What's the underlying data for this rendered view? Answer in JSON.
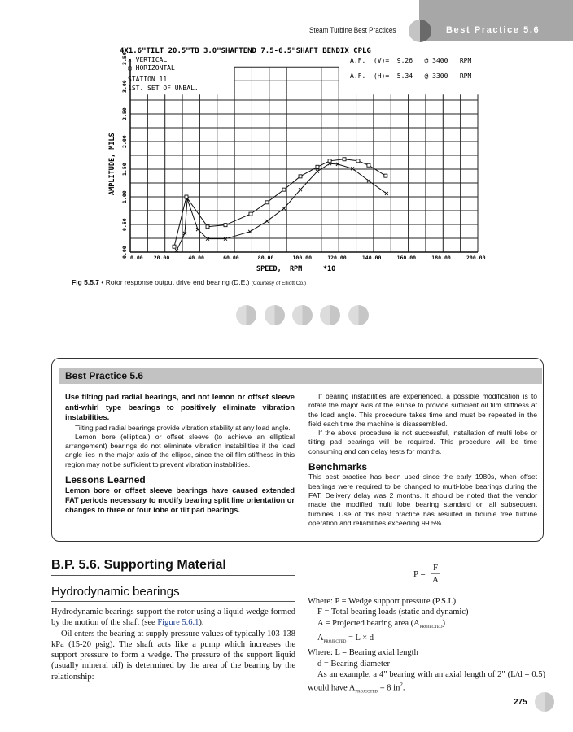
{
  "header": {
    "book_title": "Steam Turbine Best Practices",
    "section_tab": "Best Practice 5.6"
  },
  "figure": {
    "title_line": "4X1.6\"TILT 20.5\"TB 3.0\"SHAFTEND 7.5-6.5\"SHAFT BENDIX CPLG",
    "legend": [
      {
        "marker": "x",
        "label": "VERTICAL"
      },
      {
        "marker": "square",
        "label": "HORIZONTAL"
      }
    ],
    "station": "STATION 11",
    "unbal": "1ST. SET OF UNBAL.",
    "af_v": "A.F.  (V)=  9.26   @ 3400   RPM",
    "af_h": "A.F.  (H)=  5.34   @ 3300   RPM",
    "caption_label": "Fig 5.5.7",
    "caption_bullet": "•",
    "caption_text": "Rotor response output drive end bearing (D.E.)",
    "caption_credit": "(Courtesy of Elliott Co.)"
  },
  "chart_data": {
    "type": "line",
    "xlabel": "SPEED,  RPM     *10",
    "ylabel": "AMPLITUDE, MILS",
    "xlim": [
      0,
      200
    ],
    "ylim": [
      0,
      3.5
    ],
    "x_ticks": [
      "0.00",
      "20.00",
      "40.00",
      "60.00",
      "80.00",
      "100.00",
      "120.00",
      "140.00",
      "160.00",
      "180.00",
      "200.00"
    ],
    "y_ticks": [
      "0.00",
      "0.50",
      "1.00",
      "1.50",
      "2.00",
      "2.50",
      "3.00",
      "3.50"
    ],
    "grid": true,
    "series": [
      {
        "name": "VERTICAL",
        "marker": "x",
        "points": [
          [
            26.7,
            0.03
          ],
          [
            31.4,
            0.34
          ],
          [
            32.8,
            0.96
          ],
          [
            38.9,
            0.41
          ],
          [
            44.5,
            0.24
          ],
          [
            54.8,
            0.24
          ],
          [
            68.9,
            0.37
          ],
          [
            78.7,
            0.56
          ],
          [
            88.5,
            0.79
          ],
          [
            97.9,
            1.13
          ],
          [
            107.7,
            1.46
          ],
          [
            114.8,
            1.6
          ],
          [
            119.4,
            1.59
          ],
          [
            127.9,
            1.51
          ],
          [
            137.2,
            1.29
          ],
          [
            147.5,
            1.06
          ]
        ]
      },
      {
        "name": "HORIZONTAL",
        "marker": "square",
        "points": [
          [
            25.3,
            0.1
          ],
          [
            32.3,
            1.0
          ],
          [
            44.5,
            0.46
          ],
          [
            54.8,
            0.49
          ],
          [
            69.3,
            0.69
          ],
          [
            78.7,
            0.9
          ],
          [
            88.5,
            1.13
          ],
          [
            97.9,
            1.37
          ],
          [
            107.7,
            1.54
          ],
          [
            114.8,
            1.65
          ],
          [
            123.2,
            1.68
          ],
          [
            131.1,
            1.65
          ],
          [
            137.2,
            1.57
          ],
          [
            147,
            1.38
          ]
        ]
      }
    ]
  },
  "box": {
    "title": "Best Practice 5.6",
    "lead": "Use tilting pad radial bearings, and not lemon or offset sleeve anti-whirl type bearings to positively eliminate vibration instabilities.",
    "p1": "Tilting pad radial bearings provide vibration stability at any load angle.",
    "p2": "Lemon bore (elliptical) or offset sleeve (to achieve an elliptical arrangement) bearings do not eliminate vibration instabilities if the load angle lies in the major axis of the ellipse, since the oil film stiffness in this region may not be sufficient to prevent vibration instabilities.",
    "lessons_title": "Lessons Learned",
    "lessons": "Lemon bore or offset sleeve bearings have caused extended FAT periods necessary to modify bearing split line orientation or changes to three or four lobe or tilt pad bearings.",
    "p3": "If bearing instabilities are experienced, a possible modification is to rotate the major axis of the ellipse to provide sufficient oil film stiffness at the load angle. This procedure takes time and must be repeated in the field each time the machine is disassembled.",
    "p4": "If the above procedure is not successful, installation of multi lobe or tilting pad bearings will be required. This procedure will be time consuming and can delay tests for months.",
    "bench_title": "Benchmarks",
    "bench": "This best practice has been used since the early 1980s, when offset bearings were required to be changed to multi-lobe bearings during the FAT. Delivery delay was 2 months. It should be noted that the vendor made the modified multi lobe bearing standard on all subsequent turbines. Use of this best practice has resulted in trouble free turbine operation and reliabilities exceeding 99.5%."
  },
  "support": {
    "heading": "B.P. 5.6. Supporting Material",
    "subheading": "Hydrodynamic bearings",
    "p1a": "Hydrodynamic bearings support the rotor using a liquid wedge formed by the motion of the shaft (see ",
    "p1link": "Figure 5.6.1",
    "p1b": ").",
    "p2": "Oil enters the bearing at supply pressure values of typically 103-138 kPa (15-20 psig). The shaft acts like a pump which increases the support pressure to form a wedge. The pressure of the support liquid (usually mineral oil) is determined by the area of the bearing by the relationship:",
    "formula_lhs": "P =",
    "formula_num": "F",
    "formula_den": "A",
    "w1": "Where: P = Wedge support pressure (P.S.I.)",
    "w2": "F = Total bearing loads (static and dynamic)",
    "w3": "A = Projected bearing area (A",
    "w3sub": "PROJECTED",
    "w3end": ")",
    "w4": "A",
    "w4sub": "PROJECTED",
    "w4end": " = L × d",
    "w5": "Where: L = Bearing axial length",
    "w6": "d = Bearing diameter",
    "w7a": "As an example, a 4\" bearing with an axial length of 2\" (L/d = 0.5) would have A",
    "w7sub": "PROJECTED",
    "w7b": " = 8 in",
    "w7sup": "2",
    "w7c": "."
  },
  "page_number": "275"
}
